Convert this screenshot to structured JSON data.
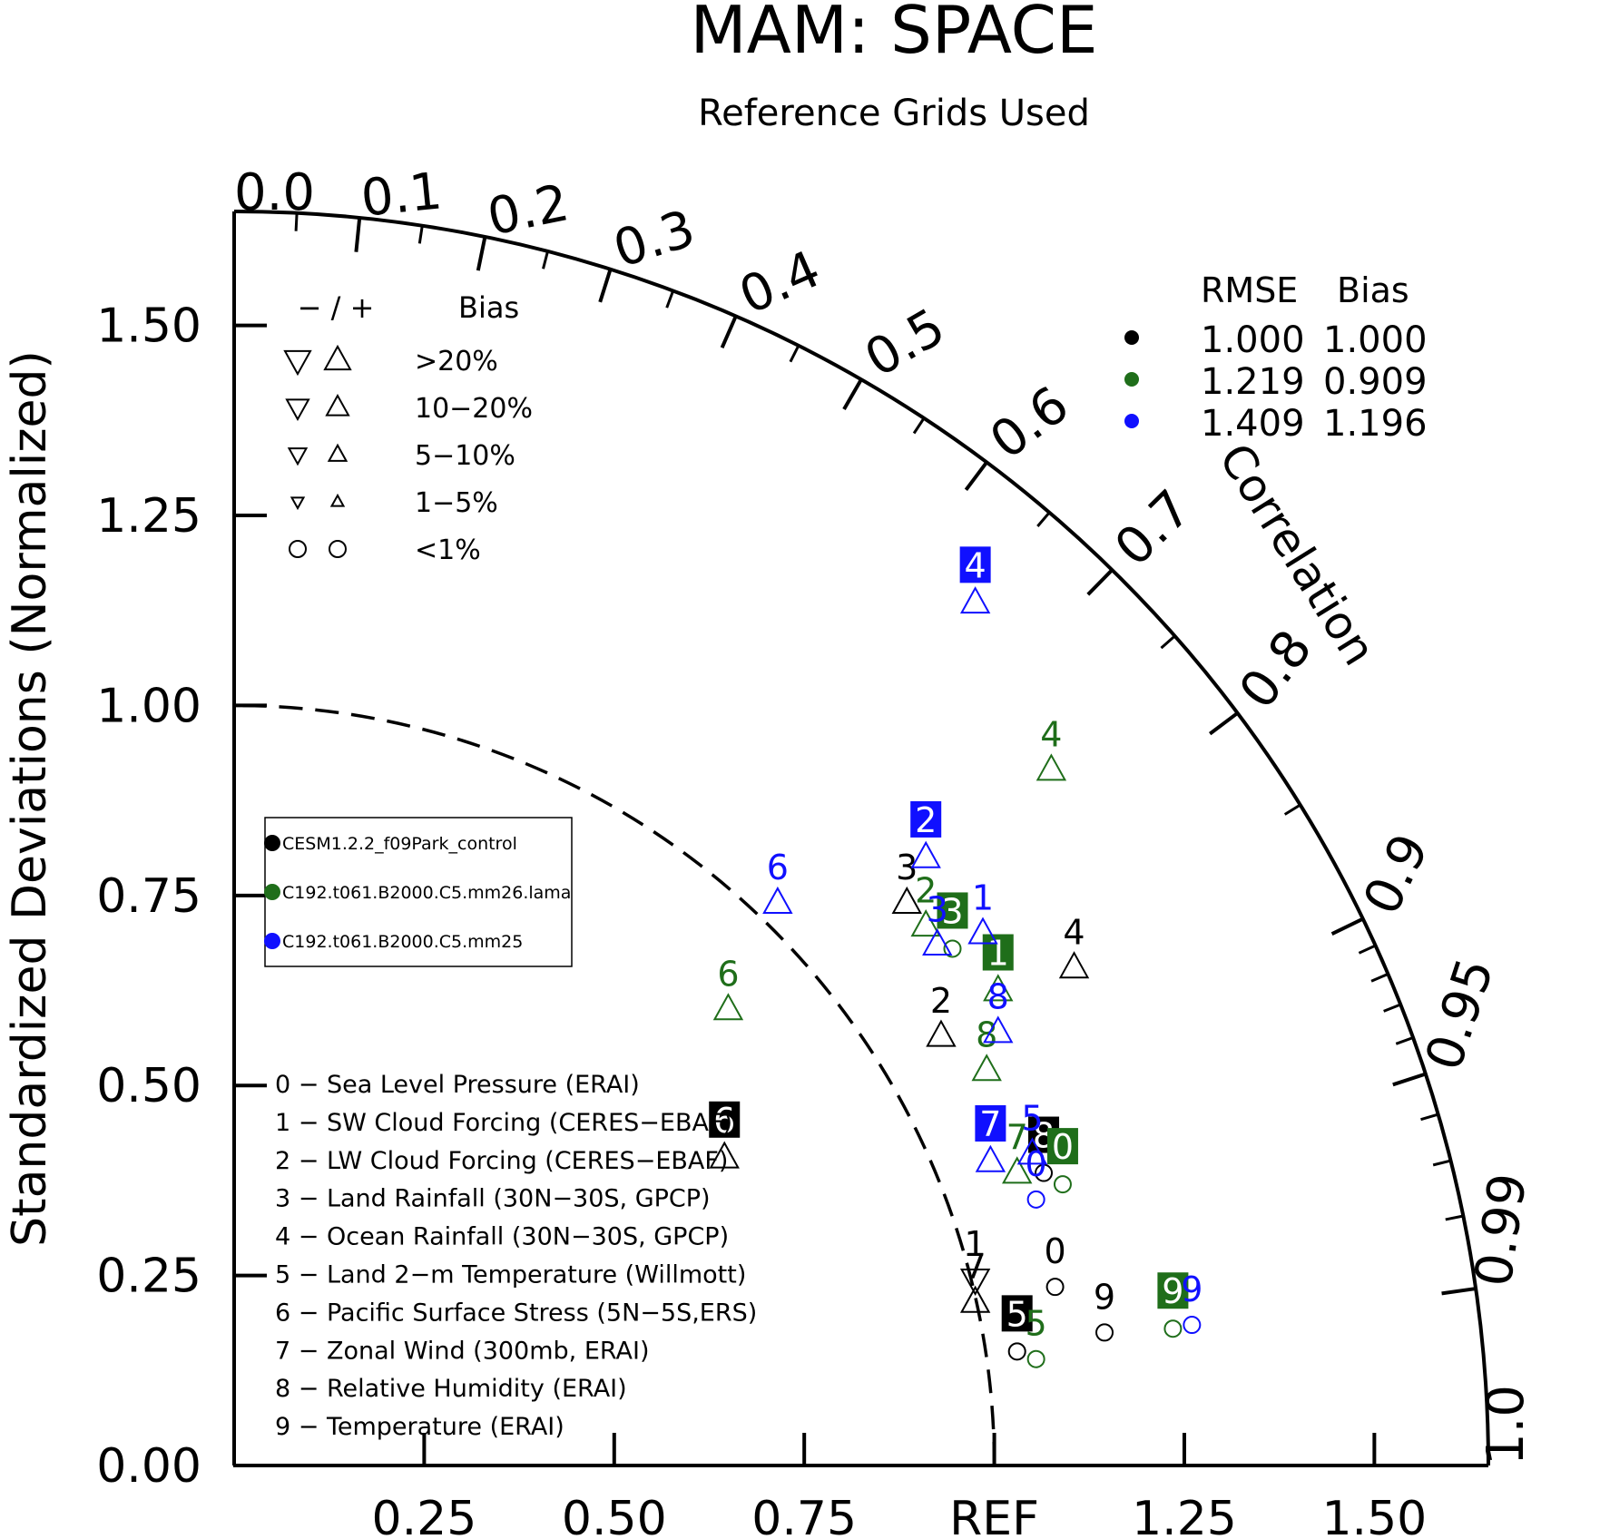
{
  "colors": {
    "black": "#000000",
    "green": "#1f6e1a",
    "blue": "#1010ff"
  },
  "chart_data": {
    "type": "scatter",
    "subtype": "taylor-diagram",
    "title": "MAM: SPACE",
    "subtitle": "Reference Grids Used",
    "ylabel": "Standardized Deviations (Normalized)",
    "angle_label": "Correlation",
    "std_max": 1.65,
    "y_ticks": [
      "0.00",
      "0.25",
      "0.50",
      "0.75",
      "1.00",
      "1.25",
      "1.50"
    ],
    "x_ticks": [
      "0.25",
      "0.50",
      "0.75",
      "REF",
      "1.25",
      "1.50"
    ],
    "corr_ticks": [
      "0.0",
      "0.1",
      "0.2",
      "0.3",
      "0.4",
      "0.5",
      "0.6",
      "0.7",
      "0.8",
      "0.9",
      "0.95",
      "0.99",
      "1.0"
    ],
    "bias_key": {
      "header": "− / +",
      "header_label": "Bias",
      "rows": [
        {
          "label": ">20%",
          "size": "xl"
        },
        {
          "label": "10−20%",
          "size": "l"
        },
        {
          "label": "5−10%",
          "size": "m"
        },
        {
          "label": "1−5%",
          "size": "s"
        },
        {
          "label": "<1%",
          "size": "circle"
        }
      ]
    },
    "stats": {
      "headers": [
        "RMSE",
        "Bias"
      ],
      "rows": [
        {
          "color": "black",
          "rmse": "1.000",
          "bias": "1.000"
        },
        {
          "color": "green",
          "rmse": "1.219",
          "bias": "0.909"
        },
        {
          "color": "blue",
          "rmse": "1.409",
          "bias": "1.196"
        }
      ]
    },
    "series": [
      {
        "name": "CESM1.2.2_f09Park_control",
        "color": "black"
      },
      {
        "name": "C192.t061.B2000.C5.mm26.lama",
        "color": "green"
      },
      {
        "name": "C192.t061.B2000.C5.mm25",
        "color": "blue"
      }
    ],
    "variables": [
      "0 − Sea Level Pressure (ERAI)",
      "1 − SW Cloud Forcing (CERES−EBAF)",
      "2 − LW Cloud Forcing (CERES−EBAF)",
      "3 − Land Rainfall (30N−30S, GPCP)",
      "4 − Ocean Rainfall (30N−30S, GPCP)",
      "5 − Land 2−m Temperature (Willmott)",
      "6 − Pacific Surface Stress (5N−5S,ERS)",
      "7 − Zonal Wind (300mb, ERAI)",
      "8 − Relative Humidity (ERAI)",
      "9 − Temperature (ERAI)"
    ],
    "points": [
      {
        "s": 0,
        "v": "0",
        "x": 1.08,
        "y": 0.235,
        "m": "circle",
        "box": false
      },
      {
        "s": 0,
        "v": "2",
        "x": 0.93,
        "y": 0.565,
        "m": "up",
        "box": false
      },
      {
        "s": 0,
        "v": "3",
        "x": 0.885,
        "y": 0.74,
        "m": "up",
        "box": false
      },
      {
        "s": 0,
        "v": "4",
        "x": 1.105,
        "y": 0.655,
        "m": "up",
        "box": false
      },
      {
        "s": 0,
        "v": "5",
        "x": 1.03,
        "y": 0.15,
        "m": "circle",
        "box": true
      },
      {
        "s": 0,
        "v": "6",
        "x": 0.645,
        "y": 0.405,
        "m": "up",
        "box": true
      },
      {
        "s": 0,
        "v": "7",
        "x": 0.975,
        "y": 0.215,
        "m": "up",
        "box": false
      },
      {
        "s": 0,
        "v": "8",
        "x": 1.065,
        "y": 0.385,
        "m": "circle",
        "box": true
      },
      {
        "s": 0,
        "v": "9",
        "x": 1.145,
        "y": 0.175,
        "m": "circle",
        "box": false
      },
      {
        "s": 0,
        "v": "1",
        "x": 0.975,
        "y": 0.245,
        "m": "down",
        "box": false
      },
      {
        "s": 1,
        "v": "0",
        "x": 1.09,
        "y": 0.37,
        "m": "circle",
        "box": true
      },
      {
        "s": 1,
        "v": "1",
        "x": 1.005,
        "y": 0.625,
        "m": "up",
        "box": true
      },
      {
        "s": 1,
        "v": "2",
        "x": 0.91,
        "y": 0.71,
        "m": "up",
        "box": false
      },
      {
        "s": 1,
        "v": "3",
        "x": 0.945,
        "y": 0.68,
        "m": "circle",
        "box": true
      },
      {
        "s": 1,
        "v": "4",
        "x": 1.075,
        "y": 0.915,
        "m": "up",
        "box": false
      },
      {
        "s": 1,
        "v": "5",
        "x": 1.055,
        "y": 0.14,
        "m": "circle",
        "box": false
      },
      {
        "s": 1,
        "v": "6",
        "x": 0.65,
        "y": 0.6,
        "m": "up",
        "box": false
      },
      {
        "s": 1,
        "v": "7",
        "x": 1.03,
        "y": 0.385,
        "m": "up",
        "box": false
      },
      {
        "s": 1,
        "v": "8",
        "x": 0.99,
        "y": 0.52,
        "m": "up",
        "box": false
      },
      {
        "s": 1,
        "v": "9",
        "x": 1.235,
        "y": 0.18,
        "m": "circle",
        "box": true
      },
      {
        "s": 2,
        "v": "0",
        "x": 1.055,
        "y": 0.35,
        "m": "circle",
        "box": false
      },
      {
        "s": 2,
        "v": "1",
        "x": 0.985,
        "y": 0.7,
        "m": "up",
        "box": false
      },
      {
        "s": 2,
        "v": "2",
        "x": 0.91,
        "y": 0.8,
        "m": "up",
        "box": true
      },
      {
        "s": 2,
        "v": "3",
        "x": 0.925,
        "y": 0.685,
        "m": "up",
        "box": false
      },
      {
        "s": 2,
        "v": "4",
        "x": 0.975,
        "y": 1.135,
        "m": "up",
        "box": true
      },
      {
        "s": 2,
        "v": "5",
        "x": 1.05,
        "y": 0.41,
        "m": "up",
        "box": false
      },
      {
        "s": 2,
        "v": "6",
        "x": 0.715,
        "y": 0.74,
        "m": "up",
        "box": false
      },
      {
        "s": 2,
        "v": "7",
        "x": 0.995,
        "y": 0.4,
        "m": "up",
        "box": true
      },
      {
        "s": 2,
        "v": "8",
        "x": 1.005,
        "y": 0.57,
        "m": "up",
        "box": false
      },
      {
        "s": 2,
        "v": "9",
        "x": 1.26,
        "y": 0.185,
        "m": "circle",
        "box": false
      }
    ]
  }
}
